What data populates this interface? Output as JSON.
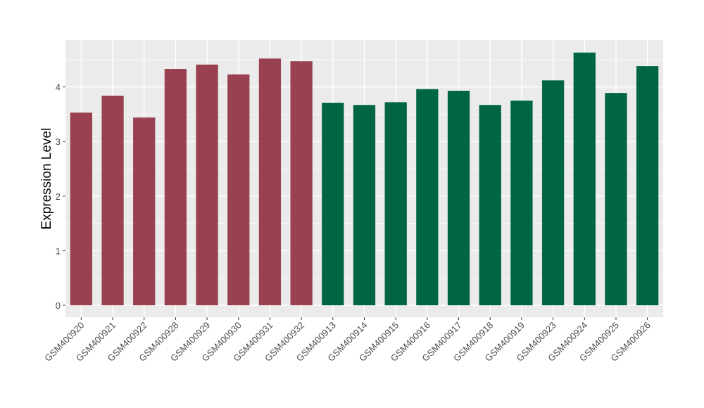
{
  "chart_data": {
    "type": "bar",
    "title": "",
    "xlabel": "",
    "ylabel": "Expression Level",
    "ylim": [
      -0.2,
      4.9
    ],
    "yticks": [
      0,
      1,
      2,
      3,
      4
    ],
    "ytick_labels": [
      "0",
      "1",
      "2",
      "3",
      "4"
    ],
    "grid": true,
    "legend": "none",
    "categories": [
      "GSM400920",
      "GSM400921",
      "GSM400922",
      "GSM400928",
      "GSM400929",
      "GSM400930",
      "GSM400931",
      "GSM400932",
      "GSM400913",
      "GSM400914",
      "GSM400915",
      "GSM400916",
      "GSM400917",
      "GSM400918",
      "GSM400919",
      "GSM400923",
      "GSM400924",
      "GSM400925",
      "GSM400926"
    ],
    "values": [
      3.53,
      3.84,
      3.44,
      4.33,
      4.41,
      4.23,
      4.52,
      4.47,
      3.71,
      3.67,
      3.72,
      3.96,
      3.93,
      3.67,
      3.75,
      4.12,
      4.63,
      3.89,
      4.38
    ],
    "groups": [
      0,
      0,
      0,
      0,
      0,
      0,
      0,
      0,
      1,
      1,
      1,
      1,
      1,
      1,
      1,
      1,
      1,
      1,
      1
    ],
    "group_colors": [
      "#9a4150",
      "#006544"
    ]
  }
}
